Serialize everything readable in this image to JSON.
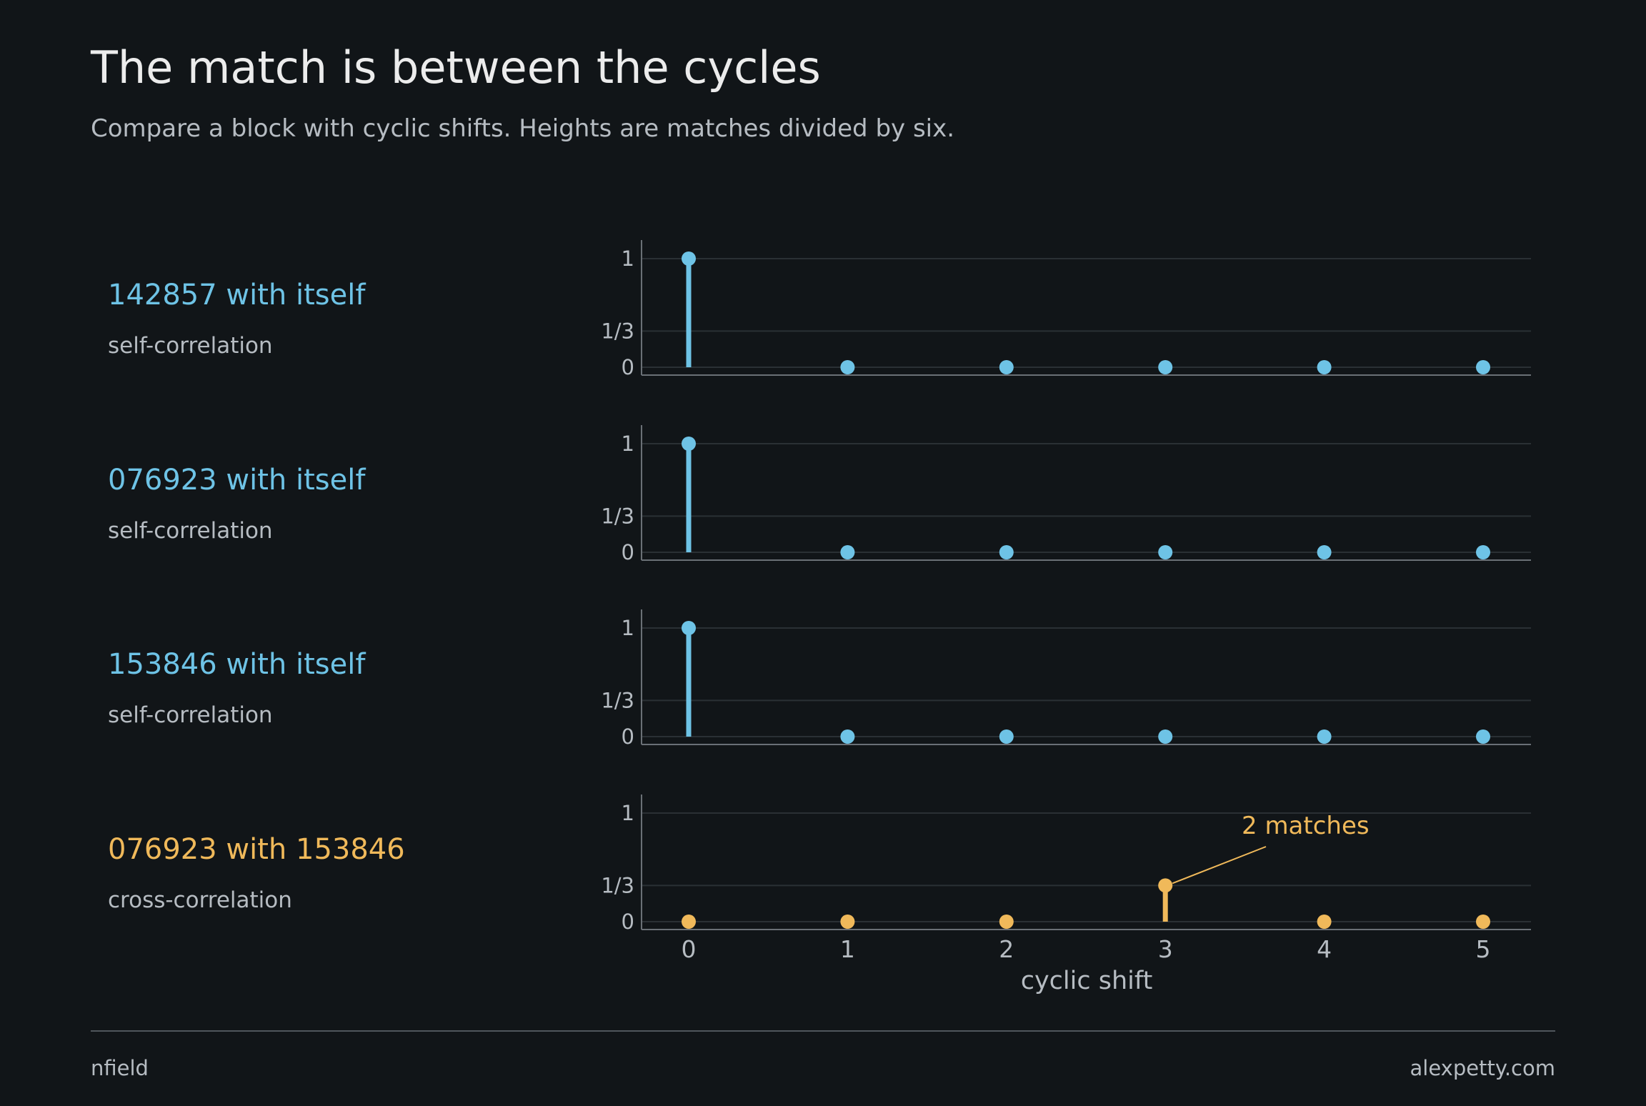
{
  "header": {
    "title": "The match is between the cycles",
    "subtitle": "Compare a block with cyclic shifts. Heights are matches divided by six."
  },
  "colors": {
    "self": "#6ec3e6",
    "cross": "#f0b95a",
    "background": "#111518",
    "grid": "#2a3034",
    "axis": "#6a7076",
    "tick_text": "#b6bcc2"
  },
  "chart_data": {
    "type": "stem",
    "xlabel": "cyclic shift",
    "x": [
      0,
      1,
      2,
      3,
      4,
      5
    ],
    "ylim": [
      0,
      1
    ],
    "yticks": [
      0,
      0.3333,
      1
    ],
    "ytick_labels": [
      "0",
      "1/3",
      "1"
    ],
    "grid": true,
    "panels": [
      {
        "label": "142857 with itself",
        "sublabel": "self-correlation",
        "kind": "self",
        "values": [
          1,
          0,
          0,
          0,
          0,
          0
        ]
      },
      {
        "label": "076923 with itself",
        "sublabel": "self-correlation",
        "kind": "self",
        "values": [
          1,
          0,
          0,
          0,
          0,
          0
        ]
      },
      {
        "label": "153846 with itself",
        "sublabel": "self-correlation",
        "kind": "self",
        "values": [
          1,
          0,
          0,
          0,
          0,
          0
        ]
      },
      {
        "label": "076923 with 153846",
        "sublabel": "cross-correlation",
        "kind": "cross",
        "values": [
          0,
          0,
          0,
          0.3333,
          0,
          0
        ],
        "annotation": {
          "text": "2 matches",
          "x": 3,
          "y": 0.3333
        }
      }
    ]
  },
  "footer": {
    "left": "nfield",
    "right": "alexpetty.com"
  }
}
